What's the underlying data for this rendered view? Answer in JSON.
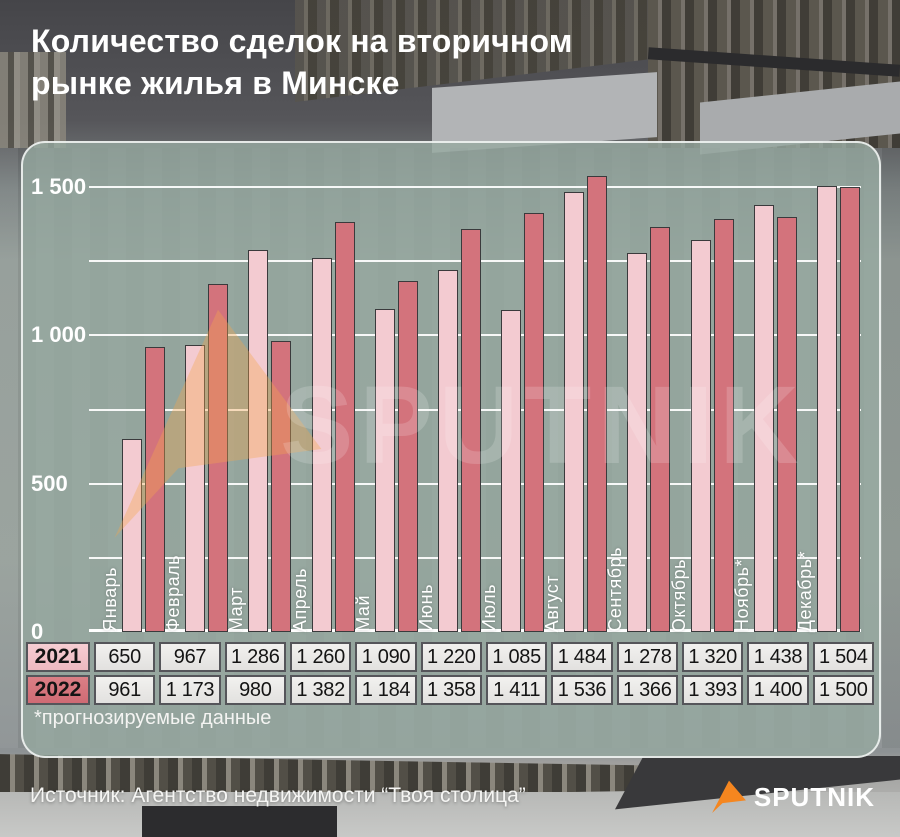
{
  "title": {
    "line1": "Количество сделок на вторичном",
    "line2": "рынке жилья в Минске"
  },
  "chart_data": {
    "type": "bar",
    "title": "Количество сделок на вторичном рынке жилья в Минске",
    "categories": [
      "Январь",
      "Февраль",
      "Март",
      "Апрель",
      "Май",
      "Июнь",
      "Июль",
      "Август",
      "Сентябрь",
      "Октябрь",
      "Ноябрь*",
      "Декабрь*"
    ],
    "series": [
      {
        "name": "2021",
        "color": "#f3cbd1",
        "values": [
          650,
          967,
          1286,
          1260,
          1090,
          1220,
          1085,
          1484,
          1278,
          1320,
          1438,
          1504
        ]
      },
      {
        "name": "2022",
        "color": "#d3737c",
        "values": [
          961,
          1173,
          980,
          1382,
          1184,
          1358,
          1411,
          1536,
          1366,
          1393,
          1400,
          1500
        ]
      }
    ],
    "xlabel": "",
    "ylabel": "",
    "ylim": [
      0,
      1500
    ],
    "ytick_interval": 250,
    "ytick_labels": [
      {
        "value": 0,
        "label": "0"
      },
      {
        "value": 500,
        "label": "500"
      },
      {
        "value": 1000,
        "label": "1 000"
      },
      {
        "value": 1500,
        "label": "1 500"
      }
    ],
    "grid": true,
    "legend_position": "table-left-column"
  },
  "table": {
    "rows": [
      {
        "year": "2021",
        "values": [
          "650",
          "967",
          "1 286",
          "1 260",
          "1 090",
          "1 220",
          "1 085",
          "1 484",
          "1 278",
          "1 320",
          "1 438",
          "1 504"
        ]
      },
      {
        "year": "2022",
        "values": [
          "961",
          "1 173",
          "980",
          "1 382",
          "1 184",
          "1 358",
          "1 411",
          "1 536",
          "1 366",
          "1 393",
          "1 400",
          "1 500"
        ]
      }
    ]
  },
  "footnote": "*прогнозируемые данные",
  "watermark": {
    "text": "SPUTNIK"
  },
  "footer": {
    "source": "Источник: Агентство недвижимости “Твоя столица”",
    "brand": "SPUTNIK"
  },
  "colors": {
    "bar_2021": "#f3cbd1",
    "bar_2022": "#d3737c",
    "year_cell_2021": "#f2c4ca",
    "year_cell_2022": "#d6757d",
    "value_cell_bg": "#e9e8e6",
    "panel_tint": "rgba(150,169,160,0.8)",
    "accent_orange": "#f5861f",
    "table_text": "#141414"
  }
}
